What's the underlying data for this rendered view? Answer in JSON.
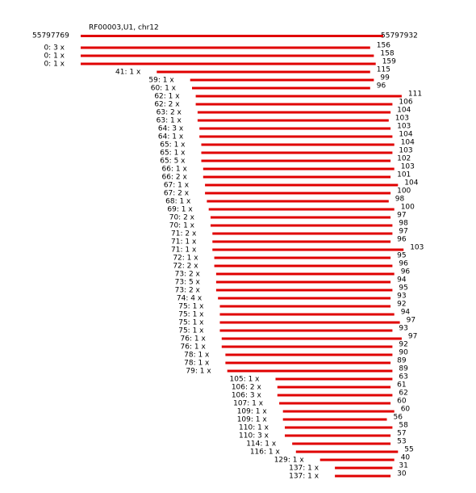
{
  "title": "RF00003,U1, chr12",
  "reference": {
    "start_label": "55797769",
    "end_label": "55797932",
    "start": 55797769,
    "end": 55797932
  },
  "reads": [
    {
      "label": "0: 3 x",
      "start": 0,
      "length": 156
    },
    {
      "label": "0: 1 x",
      "start": 0,
      "length": 158
    },
    {
      "label": "0: 1 x",
      "start": 0,
      "length": 159
    },
    {
      "label": "41: 1 x",
      "start": 41,
      "length": 115
    },
    {
      "label": "59: 1 x",
      "start": 59,
      "length": 99
    },
    {
      "label": "60: 1 x",
      "start": 60,
      "length": 96
    },
    {
      "label": "62: 1 x",
      "start": 62,
      "length": 111
    },
    {
      "label": "62: 2 x",
      "start": 62,
      "length": 106
    },
    {
      "label": "63: 2 x",
      "start": 63,
      "length": 104
    },
    {
      "label": "63: 1 x",
      "start": 63,
      "length": 103
    },
    {
      "label": "64: 3 x",
      "start": 64,
      "length": 103
    },
    {
      "label": "64: 1 x",
      "start": 64,
      "length": 104
    },
    {
      "label": "65: 1 x",
      "start": 65,
      "length": 104
    },
    {
      "label": "65: 1 x",
      "start": 65,
      "length": 103
    },
    {
      "label": "65: 5 x",
      "start": 65,
      "length": 102
    },
    {
      "label": "66: 1 x",
      "start": 66,
      "length": 103
    },
    {
      "label": "66: 2 x",
      "start": 66,
      "length": 101
    },
    {
      "label": "67: 1 x",
      "start": 67,
      "length": 104
    },
    {
      "label": "67: 2 x",
      "start": 67,
      "length": 100
    },
    {
      "label": "68: 1 x",
      "start": 68,
      "length": 98
    },
    {
      "label": "69: 1 x",
      "start": 69,
      "length": 100
    },
    {
      "label": "70: 2 x",
      "start": 70,
      "length": 97
    },
    {
      "label": "70: 1 x",
      "start": 70,
      "length": 98
    },
    {
      "label": "71: 2 x",
      "start": 71,
      "length": 97
    },
    {
      "label": "71: 1 x",
      "start": 71,
      "length": 96
    },
    {
      "label": "71: 1 x",
      "start": 71,
      "length": 103
    },
    {
      "label": "72: 1 x",
      "start": 72,
      "length": 95
    },
    {
      "label": "72: 2 x",
      "start": 72,
      "length": 96
    },
    {
      "label": "73: 2 x",
      "start": 73,
      "length": 96
    },
    {
      "label": "73: 5 x",
      "start": 73,
      "length": 94
    },
    {
      "label": "73: 2 x",
      "start": 73,
      "length": 95
    },
    {
      "label": "74: 4 x",
      "start": 74,
      "length": 93
    },
    {
      "label": "75: 1 x",
      "start": 75,
      "length": 92
    },
    {
      "label": "75: 1 x",
      "start": 75,
      "length": 94
    },
    {
      "label": "75: 1 x",
      "start": 75,
      "length": 97
    },
    {
      "label": "75: 1 x",
      "start": 75,
      "length": 93
    },
    {
      "label": "76: 1 x",
      "start": 76,
      "length": 97
    },
    {
      "label": "76: 1 x",
      "start": 76,
      "length": 92
    },
    {
      "label": "78: 1 x",
      "start": 78,
      "length": 90
    },
    {
      "label": "78: 1 x",
      "start": 78,
      "length": 89
    },
    {
      "label": "79: 1 x",
      "start": 79,
      "length": 89
    },
    {
      "label": "105: 1 x",
      "start": 105,
      "length": 63
    },
    {
      "label": "106: 2 x",
      "start": 106,
      "length": 61
    },
    {
      "label": "106: 3 x",
      "start": 106,
      "length": 62
    },
    {
      "label": "107: 1 x",
      "start": 107,
      "length": 60
    },
    {
      "label": "109: 1 x",
      "start": 109,
      "length": 60
    },
    {
      "label": "109: 1 x",
      "start": 109,
      "length": 56
    },
    {
      "label": "110: 1 x",
      "start": 110,
      "length": 58
    },
    {
      "label": "110: 3 x",
      "start": 110,
      "length": 57
    },
    {
      "label": "114: 1 x",
      "start": 114,
      "length": 53
    },
    {
      "label": "116: 1 x",
      "start": 116,
      "length": 55
    },
    {
      "label": "129: 1 x",
      "start": 129,
      "length": 40
    },
    {
      "label": "137: 1 x",
      "start": 137,
      "length": 31
    },
    {
      "label": "137: 1 x",
      "start": 137,
      "length": 30
    }
  ]
}
